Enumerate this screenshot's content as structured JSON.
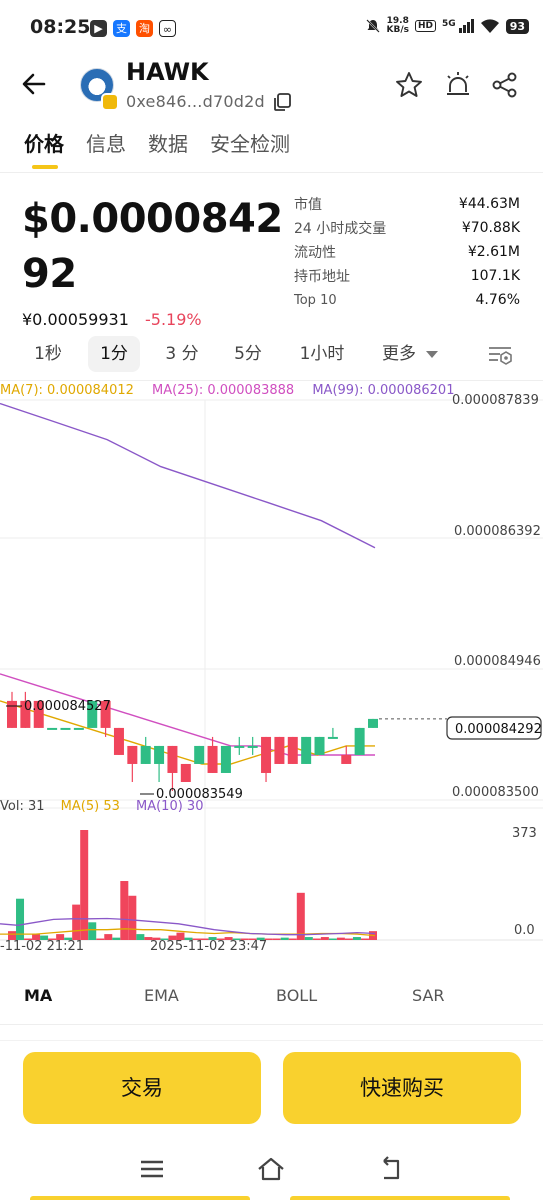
{
  "status_bar": {
    "time": "08:25",
    "net_speed_top": "19.8",
    "net_speed_unit": "KB/s",
    "hd": "HD",
    "signal": "5G",
    "battery": "93",
    "app_icons": [
      "video-app-icon",
      "alipay-icon",
      "taobao-icon",
      "sync-app-icon"
    ]
  },
  "header": {
    "token_name": "HAWK",
    "address": "0xe846...d70d2d"
  },
  "tabs": [
    "价格",
    "信息",
    "数据",
    "安全检测"
  ],
  "price": {
    "usd": "$0.000084292",
    "cny": "¥0.00059931",
    "change": "-5.19%"
  },
  "stats": [
    {
      "label": "市值",
      "value": "¥44.63M"
    },
    {
      "label": "24 小时成交量",
      "value": "¥70.88K"
    },
    {
      "label": "流动性",
      "value": "¥2.61M"
    },
    {
      "label": "持币地址",
      "value": "107.1K"
    },
    {
      "label": "Top 10",
      "value": "4.76%"
    }
  ],
  "intervals": {
    "items": [
      "1秒",
      "1分",
      "3 分",
      "5分",
      "1小时"
    ],
    "active": "1分",
    "more": "更多"
  },
  "ma_legend": {
    "ma7": "MA(7): 0.000084012",
    "ma25": "MA(25): 0.000083888",
    "ma99": "MA(99): 0.000086201"
  },
  "price_axis": {
    "labels": [
      "0.000087839",
      "0.000086392",
      "0.000084946",
      "0.000083500"
    ],
    "current": "0.000084292",
    "high_mark": "0.000084527",
    "low_mark": "0.000083549"
  },
  "vol_legend": {
    "vol": "Vol: 31",
    "ma5": "MA(5) 53",
    "ma10": "MA(10) 30"
  },
  "vol_axis": {
    "max": "373",
    "zero": "0.0"
  },
  "time_axis": {
    "left": "-11-02 21:21",
    "mid": "2025-11-02 23:47"
  },
  "colors": {
    "up": "#2fbd85",
    "down": "#f0455c",
    "ma7": "#e0a800",
    "ma25": "#d04fc0",
    "ma99": "#8a58c8",
    "accent": "#f9d12e"
  },
  "chart_data": {
    "type": "candlestick",
    "candles": [
      {
        "o": 8.45e-05,
        "h": 8.46e-05,
        "l": 8.42e-05,
        "c": 8.42e-05
      },
      {
        "o": 8.45e-05,
        "h": 8.46e-05,
        "l": 8.42e-05,
        "c": 8.42e-05
      },
      {
        "o": 8.45e-05,
        "h": 8.45e-05,
        "l": 8.42e-05,
        "c": 8.42e-05
      },
      {
        "o": 8.42e-05,
        "h": 8.42e-05,
        "l": 8.42e-05,
        "c": 8.42e-05
      },
      {
        "o": 8.42e-05,
        "h": 8.42e-05,
        "l": 8.42e-05,
        "c": 8.42e-05
      },
      {
        "o": 8.42e-05,
        "h": 8.42e-05,
        "l": 8.42e-05,
        "c": 8.42e-05
      },
      {
        "o": 8.42e-05,
        "h": 8.45e-05,
        "l": 8.42e-05,
        "c": 8.45e-05
      },
      {
        "o": 8.45e-05,
        "h": 8.45e-05,
        "l": 8.41e-05,
        "c": 8.42e-05
      },
      {
        "o": 8.42e-05,
        "h": 8.42e-05,
        "l": 8.39e-05,
        "c": 8.39e-05
      },
      {
        "o": 8.4e-05,
        "h": 8.4e-05,
        "l": 8.36e-05,
        "c": 8.38e-05
      },
      {
        "o": 8.38e-05,
        "h": 8.41e-05,
        "l": 8.38e-05,
        "c": 8.4e-05
      },
      {
        "o": 8.38e-05,
        "h": 8.4e-05,
        "l": 8.36e-05,
        "c": 8.4e-05
      },
      {
        "o": 8.4e-05,
        "h": 8.4e-05,
        "l": 8.35e-05,
        "c": 8.37e-05
      },
      {
        "o": 8.38e-05,
        "h": 8.38e-05,
        "l": 8.36e-05,
        "c": 8.36e-05
      },
      {
        "o": 8.38e-05,
        "h": 8.4e-05,
        "l": 8.38e-05,
        "c": 8.4e-05
      },
      {
        "o": 8.4e-05,
        "h": 8.41e-05,
        "l": 8.37e-05,
        "c": 8.37e-05
      },
      {
        "o": 8.37e-05,
        "h": 8.4e-05,
        "l": 8.37e-05,
        "c": 8.4e-05
      },
      {
        "o": 8.4e-05,
        "h": 8.41e-05,
        "l": 8.39e-05,
        "c": 8.4e-05
      },
      {
        "o": 8.4e-05,
        "h": 8.41e-05,
        "l": 8.39e-05,
        "c": 8.4e-05
      },
      {
        "o": 8.41e-05,
        "h": 8.41e-05,
        "l": 8.36e-05,
        "c": 8.37e-05
      },
      {
        "o": 8.41e-05,
        "h": 8.41e-05,
        "l": 8.38e-05,
        "c": 8.38e-05
      },
      {
        "o": 8.41e-05,
        "h": 8.41e-05,
        "l": 8.38e-05,
        "c": 8.38e-05
      },
      {
        "o": 8.38e-05,
        "h": 8.41e-05,
        "l": 8.38e-05,
        "c": 8.41e-05
      },
      {
        "o": 8.39e-05,
        "h": 8.41e-05,
        "l": 8.39e-05,
        "c": 8.41e-05
      },
      {
        "o": 8.41e-05,
        "h": 8.42e-05,
        "l": 8.41e-05,
        "c": 8.41e-05
      },
      {
        "o": 8.39e-05,
        "h": 8.4e-05,
        "l": 8.38e-05,
        "c": 8.38e-05
      },
      {
        "o": 8.39e-05,
        "h": 8.42e-05,
        "l": 8.39e-05,
        "c": 8.42e-05
      },
      {
        "o": 8.42e-05,
        "h": 8.43e-05,
        "l": 8.42e-05,
        "c": 8.43e-05
      }
    ],
    "volumes": [
      30,
      140,
      5,
      20,
      15,
      5,
      20,
      8,
      120,
      373,
      60,
      5,
      20,
      8,
      200,
      150,
      20,
      10,
      8,
      5,
      15,
      25,
      8,
      5,
      5,
      10,
      5,
      10,
      5,
      5,
      5,
      8,
      5,
      5,
      8,
      5,
      160,
      10,
      5,
      10,
      5,
      8,
      5,
      10,
      5,
      30
    ],
    "ma7_line": [
      8.45e-05,
      8.44e-05,
      8.43e-05,
      8.42e-05,
      8.41e-05,
      8.4e-05,
      8.39e-05,
      8.38e-05,
      8.38e-05,
      8.39e-05,
      8.4e-05,
      8.39e-05,
      8.4e-05,
      8.4e-05
    ],
    "ma25_line": [
      8.48e-05,
      8.47e-05,
      8.46e-05,
      8.45e-05,
      8.44e-05,
      8.43e-05,
      8.42e-05,
      8.41e-05,
      8.4e-05,
      8.4e-05,
      8.39e-05,
      8.39e-05,
      8.39e-05,
      8.39e-05
    ],
    "ma99_line": [
      8.78e-05,
      8.76e-05,
      8.74e-05,
      8.71e-05,
      8.69e-05,
      8.67e-05,
      8.65e-05,
      8.62e-05
    ]
  },
  "indicators": [
    "MA",
    "EMA",
    "BOLL",
    "SAR"
  ],
  "buttons": {
    "trade": "交易",
    "quick_buy": "快速购买"
  }
}
